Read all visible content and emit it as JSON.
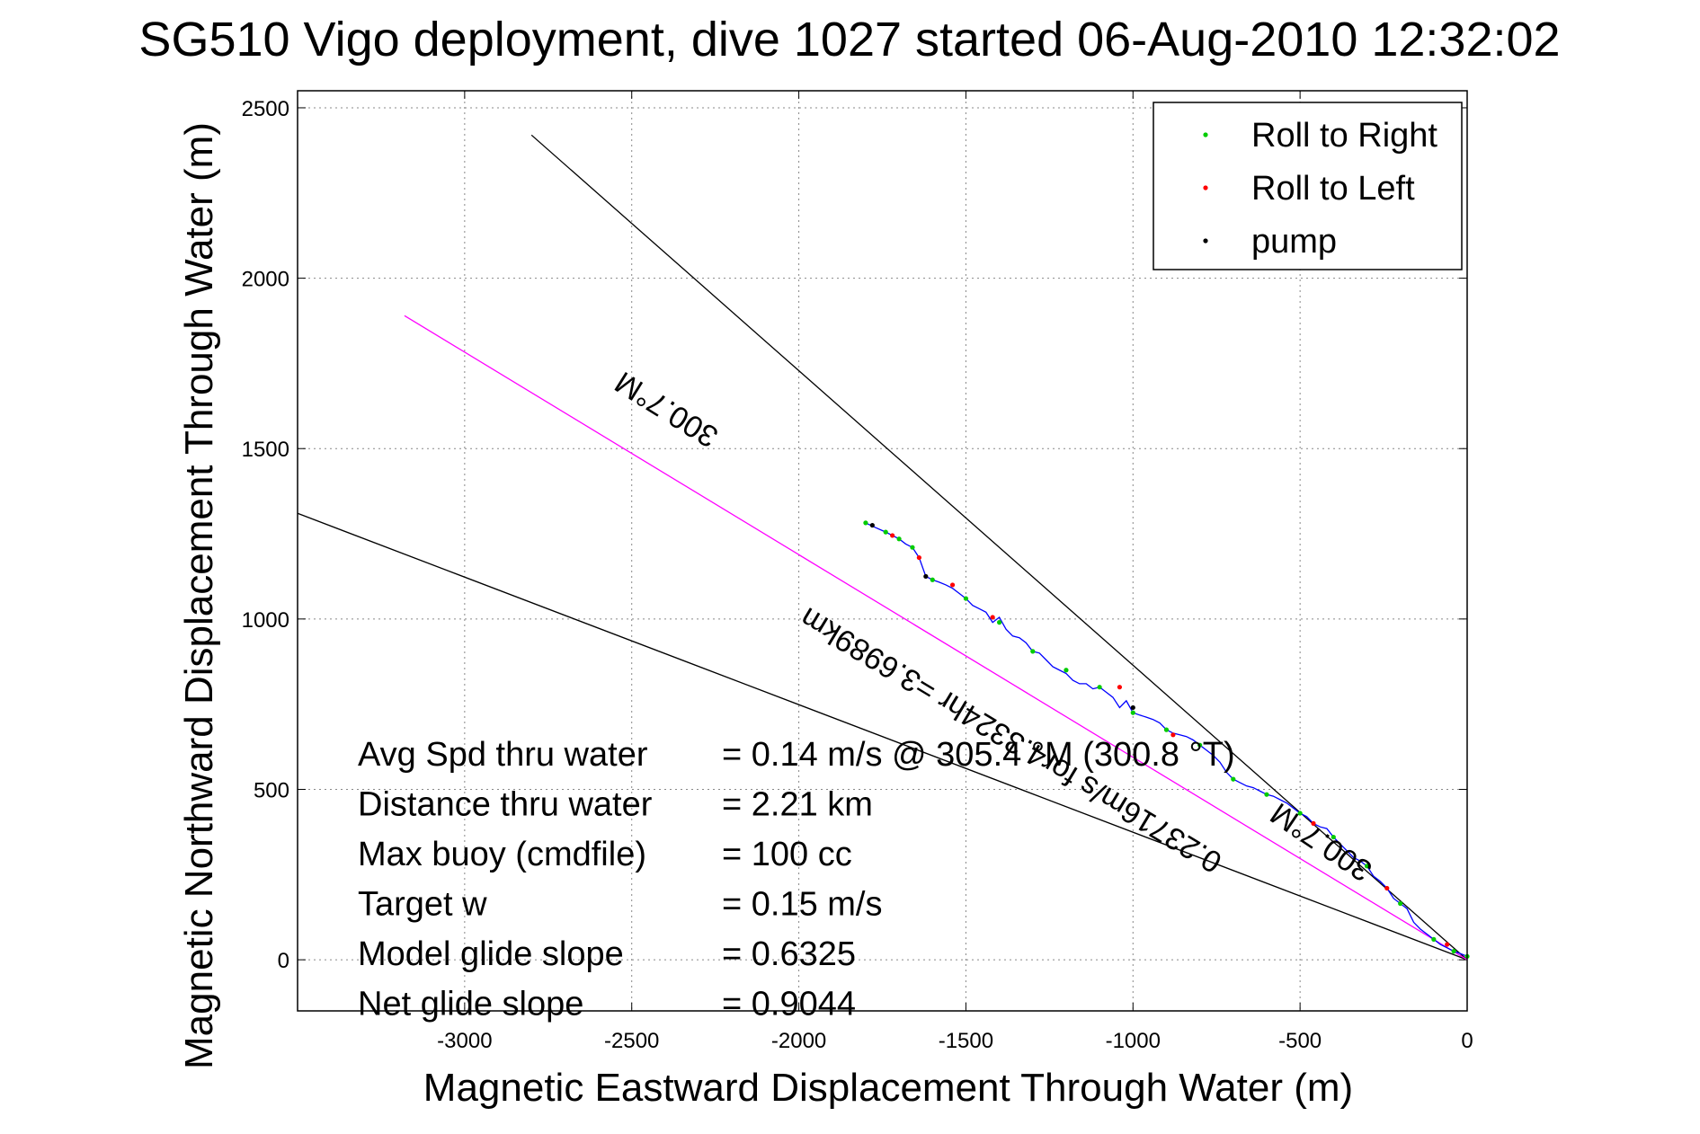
{
  "chart_data": {
    "type": "line",
    "title": "SG510 Vigo deployment, dive 1027 started 06-Aug-2010 12:32:02",
    "xlabel": "Magnetic Eastward Displacement Through Water (m)",
    "ylabel": "Magnetic Northward Displacement Through Water (m)",
    "xlim": [
      -3500,
      0
    ],
    "ylim": [
      -150,
      2550
    ],
    "xticks": [
      -3000,
      -2500,
      -2000,
      -1500,
      -1000,
      -500,
      0
    ],
    "yticks": [
      0,
      500,
      1000,
      1500,
      2000,
      2500
    ],
    "grid": true,
    "legend_position": "top-right",
    "legend": [
      {
        "label": "Roll to Right",
        "color": "#00cc00"
      },
      {
        "label": "Roll to Left",
        "color": "#ff0000"
      },
      {
        "label": "pump",
        "color": "#000000"
      }
    ],
    "reference_lines": [
      {
        "color": "#000000",
        "x": [
          -2800,
          0
        ],
        "y": [
          2420,
          0
        ]
      },
      {
        "color": "#000000",
        "x": [
          -3500,
          0
        ],
        "y": [
          1310,
          0
        ]
      },
      {
        "color": "#ff00ff",
        "x": [
          -3180,
          0
        ],
        "y": [
          1890,
          0
        ]
      }
    ],
    "track": {
      "color": "#0000ff",
      "x": [
        -1800,
        -1770,
        -1740,
        -1720,
        -1700,
        -1680,
        -1660,
        -1640,
        -1620,
        -1600,
        -1580,
        -1560,
        -1540,
        -1520,
        -1500,
        -1480,
        -1460,
        -1440,
        -1420,
        -1400,
        -1380,
        -1360,
        -1340,
        -1320,
        -1300,
        -1280,
        -1260,
        -1240,
        -1220,
        -1200,
        -1180,
        -1160,
        -1140,
        -1120,
        -1100,
        -1080,
        -1060,
        -1040,
        -1020,
        -1000,
        -980,
        -960,
        -940,
        -920,
        -900,
        -880,
        -860,
        -840,
        -820,
        -800,
        -780,
        -760,
        -740,
        -720,
        -700,
        -680,
        -660,
        -640,
        -620,
        -600,
        -580,
        -560,
        -540,
        -520,
        -500,
        -480,
        -460,
        -440,
        -420,
        -400,
        -380,
        -360,
        -340,
        -320,
        -300,
        -280,
        -260,
        -240,
        -220,
        -200,
        -180,
        -160,
        -140,
        -120,
        -100,
        -80,
        -60,
        -40,
        -20,
        0
      ],
      "y": [
        1282,
        1268,
        1255,
        1245,
        1235,
        1220,
        1210,
        1180,
        1125,
        1115,
        1108,
        1100,
        1090,
        1075,
        1060,
        1040,
        1030,
        1020,
        990,
        1005,
        970,
        950,
        945,
        930,
        905,
        900,
        880,
        860,
        850,
        840,
        820,
        810,
        810,
        795,
        800,
        785,
        770,
        740,
        760,
        725,
        718,
        712,
        705,
        695,
        675,
        665,
        660,
        655,
        645,
        630,
        615,
        600,
        580,
        550,
        530,
        520,
        510,
        505,
        495,
        485,
        480,
        470,
        460,
        445,
        430,
        420,
        400,
        390,
        385,
        360,
        340,
        320,
        300,
        290,
        275,
        245,
        230,
        210,
        180,
        165,
        150,
        110,
        90,
        75,
        60,
        45,
        35,
        25,
        18,
        10
      ],
      "roll_right_x": [
        -1800,
        -1740,
        -1700,
        -1660,
        -1600,
        -1500,
        -1400,
        -1300,
        -1200,
        -1100,
        -1000,
        -900,
        -800,
        -700,
        -600,
        -500,
        -400,
        -300,
        -200,
        -100,
        -40,
        0
      ],
      "roll_right_y": [
        1282,
        1255,
        1235,
        1210,
        1115,
        1060,
        990,
        905,
        850,
        800,
        725,
        675,
        630,
        530,
        485,
        430,
        360,
        275,
        165,
        60,
        25,
        10
      ],
      "roll_left_x": [
        -1720,
        -1640,
        -1540,
        -1420,
        -1040,
        -880,
        -460,
        -240,
        -60
      ],
      "roll_left_y": [
        1245,
        1180,
        1100,
        1005,
        800,
        660,
        400,
        210,
        45
      ],
      "pump_x": [
        -1780,
        -1620,
        -1000
      ],
      "pump_y": [
        1275,
        1125,
        740
      ]
    },
    "line_labels": [
      {
        "text": "300.7°M",
        "x": -2380,
        "y": 1640,
        "angle": 212
      },
      {
        "text": "0.23716m/s for4.3324hr =3.6989km",
        "x": -1350,
        "y": 670,
        "angle": 211
      },
      {
        "text": "300.7°M",
        "x": -420,
        "y": 370,
        "angle": 214
      }
    ],
    "annotations": [
      {
        "label": "Avg Spd thru water",
        "value": "=  0.14 m/s @ 305.4 °M (300.8 °T)"
      },
      {
        "label": "Distance thru water",
        "value": "=  2.21 km"
      },
      {
        "label": "Max buoy (cmdfile)",
        "value": "= 100 cc"
      },
      {
        "label": "Target w",
        "value": "= 0.15 m/s"
      },
      {
        "label": "Model glide slope",
        "value": "= 0.6325"
      },
      {
        "label": "Net glide slope",
        "value": "= 0.9044"
      }
    ]
  }
}
